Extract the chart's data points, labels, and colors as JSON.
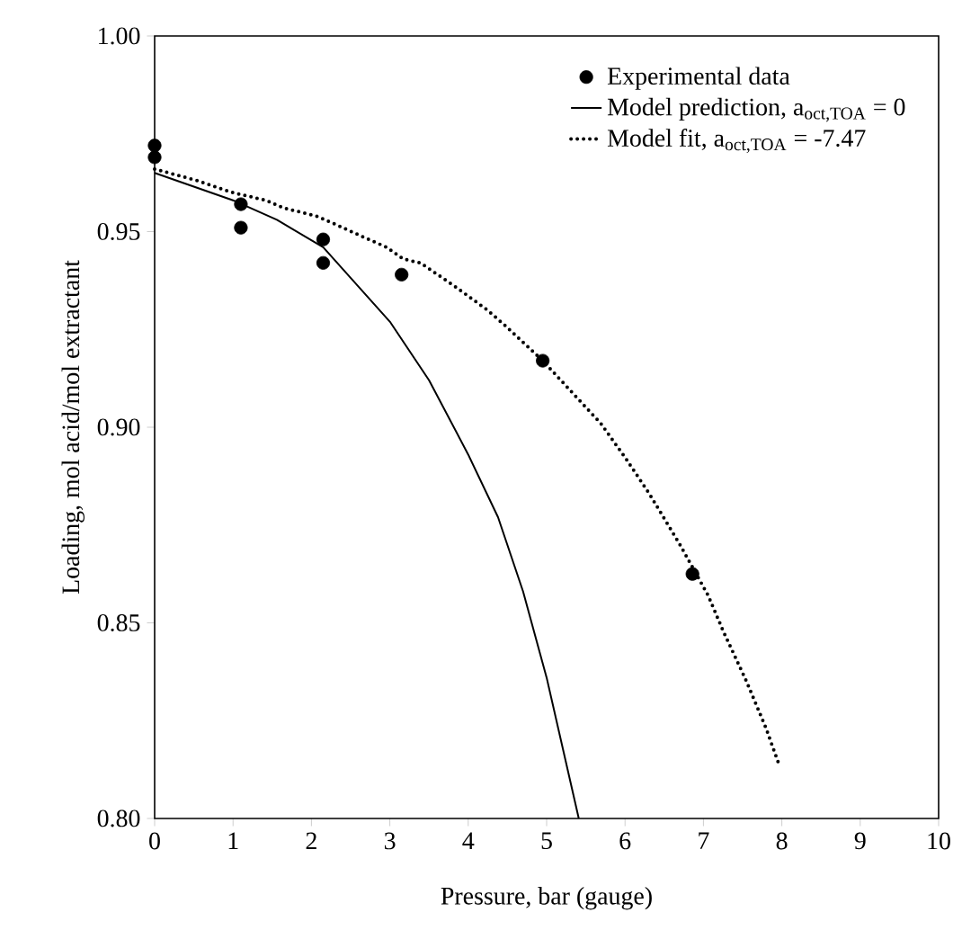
{
  "chart_data": {
    "type": "scatter",
    "xlabel": "Pressure, bar (gauge)",
    "ylabel": "Loading, mol acid/mol extractant",
    "xlim": [
      0,
      10
    ],
    "ylim": [
      0.8,
      1.0
    ],
    "xticks": [
      0,
      1,
      2,
      3,
      4,
      5,
      6,
      7,
      8,
      9,
      10
    ],
    "yticks": [
      {
        "value": 0.8,
        "label": "0.80"
      },
      {
        "value": 0.85,
        "label": "0.85"
      },
      {
        "value": 0.9,
        "label": "0.90"
      },
      {
        "value": 0.95,
        "label": "0.95"
      },
      {
        "value": 1.0,
        "label": "1.00"
      }
    ],
    "legend": "top right",
    "grid": false,
    "series": [
      {
        "name": "Experimental data",
        "marker": "circle",
        "color": "#000000",
        "x": [
          0,
          0,
          1.1,
          1.1,
          2.15,
          2.15,
          3.15,
          4.95,
          6.86
        ],
        "values": [
          0.972,
          0.969,
          0.957,
          0.951,
          0.948,
          0.942,
          0.939,
          0.917,
          0.8625
        ]
      },
      {
        "name": "Model prediction, a$_{oct,TOA}$ = 0",
        "type": "line",
        "line_style": "solid",
        "marker": "none",
        "color": "#000000",
        "x": [
          0,
          1.0,
          1.56,
          2.15,
          3.0,
          3.5,
          4.0,
          4.38,
          4.7,
          5.0,
          5.41
        ],
        "values": [
          0.965,
          0.958,
          0.953,
          0.946,
          0.927,
          0.912,
          0.893,
          0.877,
          0.858,
          0.836,
          0.8
        ]
      },
      {
        "name": "Model fit, a$_{oct,TOA}$ = -7.47",
        "type": "line",
        "line_style": "dotted",
        "marker": "none",
        "color": "#000000",
        "x": [
          0,
          0.55,
          0.99,
          1.42,
          1.65,
          2.06,
          2.29,
          2.73,
          2.96,
          3.17,
          3.39,
          3.83,
          4.24,
          4.47,
          4.95,
          5.32,
          5.69,
          6.01,
          6.31,
          6.7,
          7.06,
          7.25,
          7.55,
          7.8,
          7.96
        ],
        "values": [
          0.966,
          0.963,
          0.96,
          0.958,
          0.956,
          0.954,
          0.952,
          0.948,
          0.946,
          0.943,
          0.942,
          0.936,
          0.93,
          0.926,
          0.917,
          0.909,
          0.901,
          0.892,
          0.883,
          0.87,
          0.857,
          0.848,
          0.835,
          0.823,
          0.814
        ]
      }
    ]
  }
}
